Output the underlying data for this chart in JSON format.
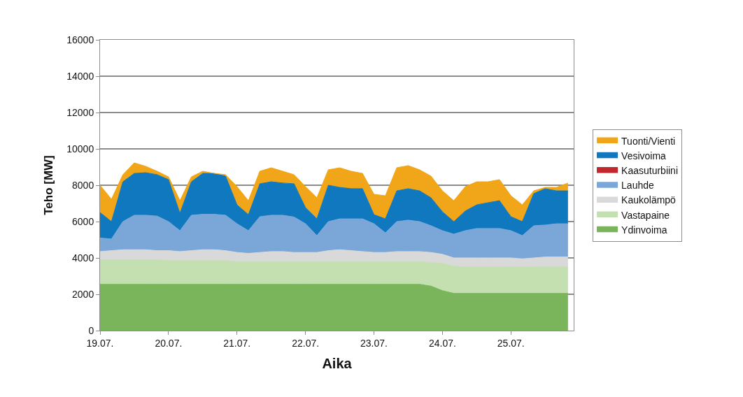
{
  "chart_data": {
    "type": "area",
    "stacked": true,
    "xlabel": "Aika",
    "ylabel": "Teho [MW]",
    "x": [
      "--07-19T00:00",
      "--07-19T04:00",
      "--07-19T08:00",
      "--07-19T12:00",
      "--07-19T16:00",
      "--07-19T20:00",
      "--07-20T00:00",
      "--07-20T04:00",
      "--07-20T08:00",
      "--07-20T12:00",
      "--07-20T16:00",
      "--07-20T20:00",
      "--07-21T00:00",
      "--07-21T04:00",
      "--07-21T08:00",
      "--07-21T12:00",
      "--07-21T16:00",
      "--07-21T20:00",
      "--07-22T00:00",
      "--07-22T04:00",
      "--07-22T08:00",
      "--07-22T12:00",
      "--07-22T16:00",
      "--07-22T20:00",
      "--07-23T00:00",
      "--07-23T04:00",
      "--07-23T08:00",
      "--07-23T12:00",
      "--07-23T16:00",
      "--07-23T20:00",
      "--07-24T00:00",
      "--07-24T04:00",
      "--07-24T08:00",
      "--07-24T12:00",
      "--07-24T16:00",
      "--07-24T20:00",
      "--07-25T00:00",
      "--07-25T04:00",
      "--07-25T08:00",
      "--07-25T12:00",
      "--07-25T16:00",
      "--07-25T20:00"
    ],
    "xlim": [
      "--07-19T00:00",
      "--07-25T22:00"
    ],
    "xticks": [
      {
        "value": "--07-19",
        "label": "19.07."
      },
      {
        "value": "--07-20",
        "label": "20.07."
      },
      {
        "value": "--07-21",
        "label": "21.07."
      },
      {
        "value": "--07-22",
        "label": "22.07."
      },
      {
        "value": "--07-23",
        "label": "23.07."
      },
      {
        "value": "--07-24",
        "label": "24.07."
      },
      {
        "value": "--07-25",
        "label": "25.07."
      }
    ],
    "ylim": [
      0,
      16000
    ],
    "yticks": [
      0,
      2000,
      4000,
      6000,
      8000,
      10000,
      12000,
      14000,
      16000
    ],
    "grid": "y",
    "legend": "right",
    "marker": "none",
    "series": [
      {
        "name": "Ydinvoima",
        "color": "#7ab55c",
        "values": [
          2550,
          2550,
          2550,
          2550,
          2550,
          2550,
          2550,
          2550,
          2550,
          2550,
          2550,
          2550,
          2550,
          2550,
          2550,
          2550,
          2550,
          2550,
          2550,
          2550,
          2550,
          2550,
          2550,
          2550,
          2550,
          2550,
          2550,
          2550,
          2550,
          2450,
          2200,
          2050,
          2050,
          2050,
          2050,
          2050,
          2050,
          2050,
          2050,
          2050,
          2050,
          2050
        ]
      },
      {
        "name": "Vastapaine",
        "color": "#c5e0b0",
        "values": [
          1350,
          1350,
          1350,
          1350,
          1350,
          1350,
          1300,
          1300,
          1300,
          1300,
          1300,
          1300,
          1250,
          1250,
          1250,
          1250,
          1250,
          1250,
          1250,
          1250,
          1250,
          1250,
          1250,
          1250,
          1250,
          1250,
          1250,
          1250,
          1250,
          1300,
          1500,
          1500,
          1450,
          1450,
          1450,
          1450,
          1450,
          1450,
          1450,
          1450,
          1450,
          1450
        ]
      },
      {
        "name": "Kaukolämpö",
        "color": "#d9d9d9",
        "values": [
          450,
          500,
          550,
          550,
          550,
          500,
          550,
          500,
          550,
          600,
          600,
          550,
          500,
          450,
          500,
          550,
          550,
          500,
          500,
          500,
          600,
          650,
          600,
          550,
          500,
          500,
          550,
          550,
          550,
          550,
          500,
          450,
          500,
          500,
          500,
          500,
          500,
          450,
          500,
          550,
          550,
          550
        ]
      },
      {
        "name": "Lauhde",
        "color": "#7ba7d8",
        "values": [
          750,
          640,
          1550,
          1900,
          1900,
          1900,
          1600,
          1150,
          1950,
          1950,
          1950,
          1950,
          1580,
          1250,
          1970,
          2000,
          2000,
          1950,
          1580,
          930,
          1600,
          1700,
          1750,
          1800,
          1580,
          1080,
          1650,
          1730,
          1650,
          1470,
          1300,
          1310,
          1500,
          1620,
          1620,
          1620,
          1500,
          1280,
          1770,
          1760,
          1830,
          1830
        ]
      },
      {
        "name": "Kaasuturbiini",
        "color": "#c0282d",
        "values": [
          null,
          null,
          null,
          null,
          null,
          null,
          null,
          null,
          null,
          null,
          null,
          null,
          null,
          null,
          null,
          null,
          null,
          null,
          null,
          null,
          null,
          null,
          null,
          null,
          null,
          null,
          null,
          null,
          null,
          null,
          null,
          null,
          null,
          null,
          null,
          null,
          null,
          null,
          null,
          null,
          null,
          null
        ]
      },
      {
        "name": "Vesivoima",
        "color": "#0f78be",
        "values": [
          1400,
          960,
          2190,
          2300,
          2340,
          2280,
          2310,
          960,
          1840,
          2250,
          2250,
          2150,
          1040,
          880,
          1810,
          1840,
          1770,
          1830,
          890,
          920,
          2000,
          1730,
          1660,
          1660,
          500,
          770,
          1690,
          1730,
          1690,
          1540,
          1040,
          690,
          1080,
          1300,
          1420,
          1530,
          770,
          770,
          1770,
          2000,
          1810,
          1810
        ]
      },
      {
        "name": "Tuonti/Vienti",
        "color": "#f0a618",
        "values": [
          1500,
          1230,
          390,
          580,
          350,
          190,
          150,
          690,
          270,
          120,
          0,
          80,
          1000,
          770,
          690,
          770,
          650,
          500,
          1150,
          1160,
          850,
          1080,
          960,
          840,
          1120,
          1270,
          1270,
          1270,
          1160,
          1190,
          1150,
          1150,
          1340,
          1270,
          1150,
          1160,
          1150,
          920,
          150,
          70,
          190,
          430
        ]
      }
    ]
  }
}
